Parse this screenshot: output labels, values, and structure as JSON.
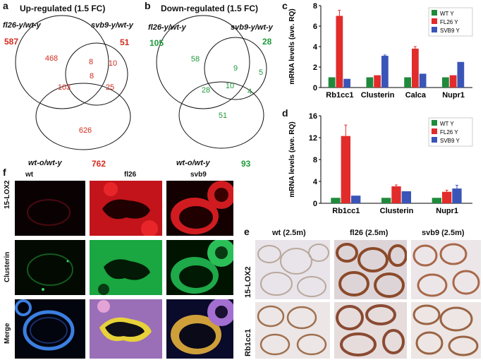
{
  "panel_labels": {
    "a": "a",
    "b": "b",
    "c": "c",
    "d": "d",
    "e": "e",
    "f": "f"
  },
  "venn_a": {
    "title": "Up-regulated (1.5 FC)",
    "set1": "fl26-y/wt-y",
    "set2": "svb9-y/wt-y",
    "set3": "wt-o/wt-y",
    "total1": "587",
    "total2": "51",
    "total3": "762",
    "regions": {
      "only1": "468",
      "only2": "10",
      "only3": "626",
      "r12": "8",
      "r13": "103",
      "r23": "25",
      "r123": "8"
    },
    "color": "#d42a1e"
  },
  "venn_b": {
    "title": "Down-regulated (1.5 FC)",
    "set1": "fl26-y/wt-y",
    "set2": "svb9-y/wt-y",
    "set3": "wt-o/wt-y",
    "total1": "105",
    "total2": "28",
    "total3": "93",
    "regions": {
      "only1": "58",
      "only2": "5",
      "only3": "51",
      "r12": "9",
      "r13": "28",
      "r23": "4",
      "r123": "10"
    },
    "color": "#1f9a3b"
  },
  "chart_data": [
    {
      "panel": "c",
      "type": "bar",
      "categories": [
        "Rb1cc1",
        "Clusterin",
        "Calca",
        "Nupr1"
      ],
      "series": [
        {
          "name": "WT Y",
          "values": [
            1.0,
            1.0,
            1.0,
            1.0
          ],
          "errors": [
            0,
            0,
            0,
            0
          ]
        },
        {
          "name": "FL26 Y",
          "values": [
            7.0,
            1.2,
            3.8,
            1.2
          ],
          "errors": [
            0.55,
            0,
            0.2,
            0
          ]
        },
        {
          "name": "SVB9 Y",
          "values": [
            0.85,
            3.1,
            1.35,
            2.5
          ],
          "errors": [
            0,
            0.08,
            0,
            0
          ]
        }
      ],
      "ylabel": "mRNA levels (ave. RQ)",
      "ylim": [
        0,
        8
      ],
      "yticks": [
        0,
        2,
        4,
        6,
        8
      ],
      "legend": "top-right",
      "colors": [
        "#1f8a3c",
        "#e22b2b",
        "#3a55b8"
      ]
    },
    {
      "panel": "d",
      "type": "bar",
      "categories": [
        "Rb1cc1",
        "Clusterin",
        "Nupr1"
      ],
      "series": [
        {
          "name": "WT Y",
          "values": [
            1.0,
            1.0,
            1.0
          ],
          "errors": [
            0,
            0,
            0
          ]
        },
        {
          "name": "FL26 Y",
          "values": [
            12.3,
            3.1,
            2.1
          ],
          "errors": [
            2.0,
            0.25,
            0.3
          ]
        },
        {
          "name": "SVB9 Y",
          "values": [
            1.4,
            2.2,
            2.7
          ],
          "errors": [
            0,
            0,
            0.6
          ]
        }
      ],
      "ylabel": "mRNA levels (ave. RQ)",
      "ylim": [
        0,
        16
      ],
      "yticks": [
        0,
        4,
        8,
        12,
        16
      ],
      "legend": "top-right",
      "colors": [
        "#1f8a3c",
        "#e22b2b",
        "#3a55b8"
      ]
    }
  ],
  "micro_f": {
    "cols": [
      "wt",
      "fl26",
      "svb9"
    ],
    "rows": [
      "15-LOX2",
      "Clusterin",
      "Merge"
    ]
  },
  "micro_e": {
    "cols": [
      "wt (2.5m)",
      "fl26 (2.5m)",
      "svb9 (2.5m)"
    ],
    "rows": [
      "15-LOX2",
      "Rb1cc1"
    ]
  }
}
